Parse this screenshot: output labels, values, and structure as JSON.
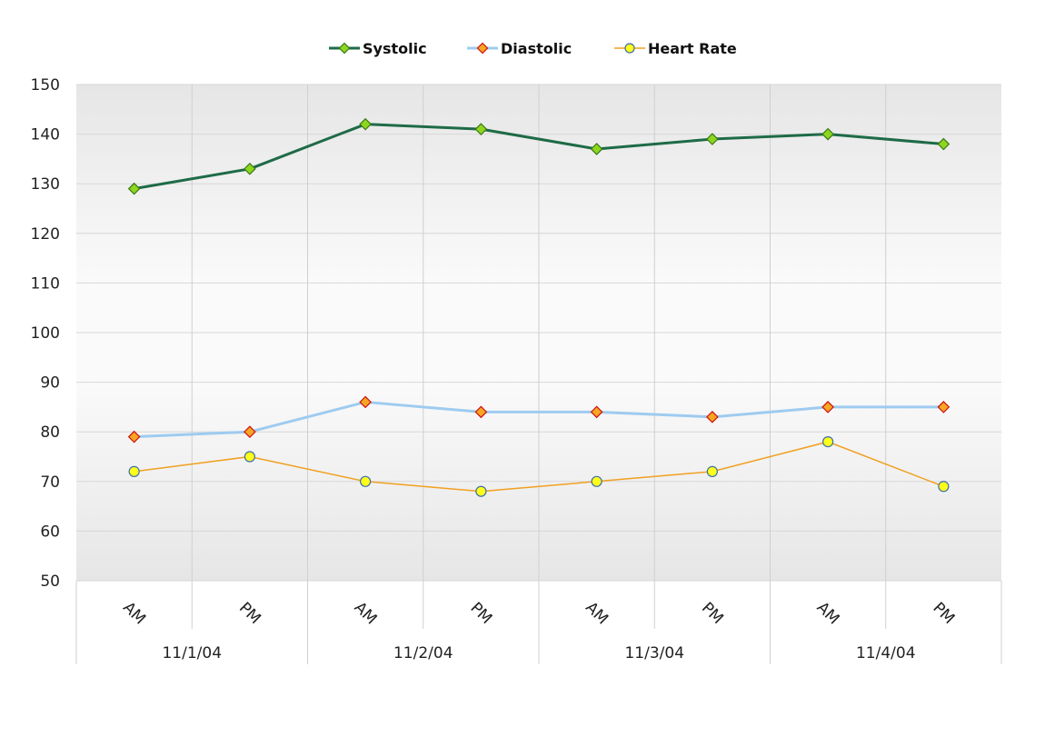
{
  "chart_data": {
    "type": "line",
    "categories": [
      "AM",
      "PM",
      "AM",
      "PM",
      "AM",
      "PM",
      "AM",
      "PM"
    ],
    "groups": [
      "11/1/04",
      "11/2/04",
      "11/3/04",
      "11/4/04"
    ],
    "ylim": [
      50,
      150
    ],
    "yticks": [
      "150",
      "140",
      "130",
      "120",
      "110",
      "100",
      "90",
      "80",
      "70",
      "60",
      "50"
    ],
    "grid": true,
    "legend": "top",
    "series": [
      {
        "name": "Systolic",
        "values": [
          129,
          133,
          142,
          141,
          137,
          139,
          140,
          138
        ],
        "color": "#1e6b47",
        "marker": "diamond",
        "marker_fill": "#8ed61e",
        "marker_stroke": "#3a7a18"
      },
      {
        "name": "Diastolic",
        "values": [
          79,
          80,
          86,
          84,
          84,
          83,
          85,
          85
        ],
        "color": "#9ecbf0",
        "marker": "diamond",
        "marker_fill": "#f5a623",
        "marker_stroke": "#d01010"
      },
      {
        "name": "Heart Rate",
        "values": [
          72,
          75,
          70,
          68,
          70,
          72,
          78,
          69
        ],
        "color": "#f0a020",
        "marker": "circle",
        "marker_fill": "#ffff1a",
        "marker_stroke": "#3c6ea8"
      }
    ]
  }
}
